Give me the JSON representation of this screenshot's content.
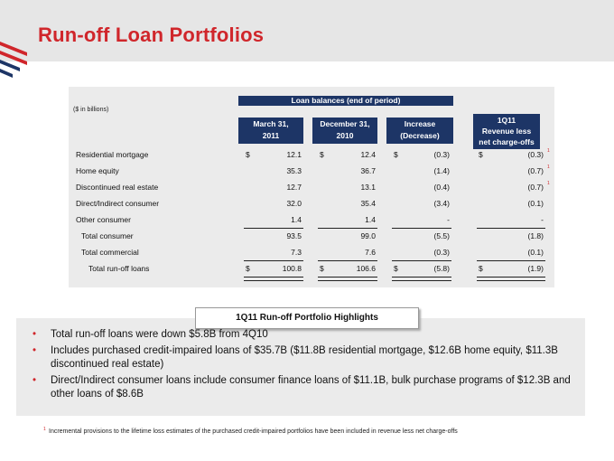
{
  "title": "Run-off Loan Portfolios",
  "colors": {
    "accent": "#d0262b",
    "header": "#1d3566"
  },
  "table": {
    "units": "($ in billions)",
    "group_header": "Loan balances (end of period)",
    "columns": [
      {
        "line1": "March 31,",
        "line2": "2011"
      },
      {
        "line1": "December 31,",
        "line2": "2010"
      },
      {
        "line1": "Increase",
        "line2": "(Decrease)"
      },
      {
        "line1": "1Q11",
        "line2": "Revenue less",
        "line3": "net charge-offs"
      }
    ],
    "rows": [
      {
        "label": "Residential mortgage",
        "values": [
          "12.1",
          "12.4",
          "(0.3)",
          "(0.3)"
        ],
        "sup": "1"
      },
      {
        "label": "Home equity",
        "values": [
          "35.3",
          "36.7",
          "(1.4)",
          "(0.7)"
        ],
        "sup": "1"
      },
      {
        "label": "Discontinued real estate",
        "values": [
          "12.7",
          "13.1",
          "(0.4)",
          "(0.7)"
        ],
        "sup": "1"
      },
      {
        "label": "Direct/Indirect consumer",
        "values": [
          "32.0",
          "35.4",
          "(3.4)",
          "(0.1)"
        ]
      },
      {
        "label": "Other consumer",
        "values": [
          "1.4",
          "1.4",
          "-",
          "-"
        ]
      },
      {
        "label": "Total consumer",
        "values": [
          "93.5",
          "99.0",
          "(5.5)",
          "(1.8)"
        ]
      },
      {
        "label": "Total commercial",
        "values": [
          "7.3",
          "7.6",
          "(0.3)",
          "(0.1)"
        ]
      },
      {
        "label": "Total run-off loans",
        "values": [
          "100.8",
          "106.6",
          "(5.8)",
          "(1.9)"
        ]
      }
    ],
    "dollar_sign": "$"
  },
  "highlights": {
    "title": "1Q11 Run-off Portfolio Highlights",
    "bullets": [
      "Total run-off loans were down $5.8B from 4Q10",
      "Includes purchased credit-impaired loans of $35.7B ($11.8B residential mortgage, $12.6B home equity, $11.3B discontinued real estate)",
      "Direct/Indirect consumer loans include consumer finance loans of $11.1B, bulk purchase programs of $12.3B and other loans of $8.6B"
    ],
    "bullet_glyph": "•"
  },
  "footnote": {
    "marker": "1",
    "text": "Incremental provisions to the lifetime loss estimates of the purchased credit-impaired portfolios have been included in revenue less net charge-offs"
  }
}
